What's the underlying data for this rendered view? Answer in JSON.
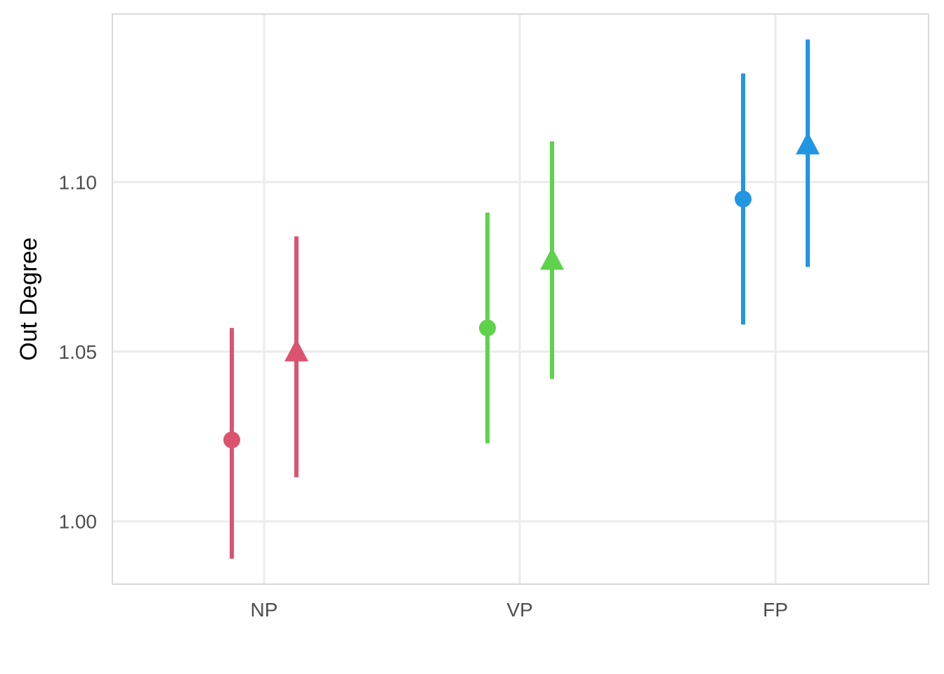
{
  "chart_data": {
    "type": "scatter",
    "title": "",
    "xlabel": "",
    "ylabel": "Out Degree",
    "categories": [
      "NP",
      "VP",
      "FP"
    ],
    "ylim": [
      0.9815,
      1.1495
    ],
    "yticks": [
      1.0,
      1.05,
      1.1
    ],
    "ytick_labels": [
      "1.00",
      "1.05",
      "1.10"
    ],
    "grid": true,
    "category_colors": [
      "#DC5370",
      "#5FD24B",
      "#2196E3"
    ],
    "series": [
      {
        "marker": "circle",
        "values": [
          1.024,
          1.057,
          1.095
        ],
        "lower": [
          0.989,
          1.023,
          1.058
        ],
        "upper": [
          1.057,
          1.091,
          1.132
        ]
      },
      {
        "marker": "triangle",
        "values": [
          1.049,
          1.076,
          1.11
        ],
        "lower": [
          1.013,
          1.042,
          1.075
        ],
        "upper": [
          1.084,
          1.112,
          1.142
        ]
      }
    ]
  }
}
